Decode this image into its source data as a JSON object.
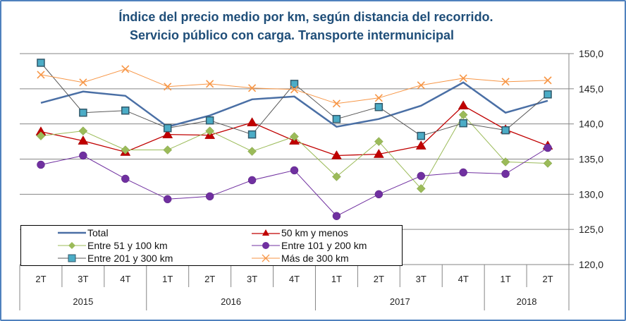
{
  "chart_data": {
    "type": "line",
    "title": "Índice del precio medio por km, según distancia del recorrido.",
    "subtitle": "Servicio público con carga. Transporte intermunicipal",
    "xlabel": "",
    "ylabel": "",
    "ylim": [
      120,
      150
    ],
    "y_ticks": [
      "150,0",
      "145,0",
      "140,0",
      "135,0",
      "130,0",
      "125,0",
      "120,0"
    ],
    "y_tick_values": [
      150,
      145,
      140,
      135,
      130,
      125,
      120
    ],
    "y_axis_side": "right",
    "grid": true,
    "legend_position": "bottom-left",
    "categories": [
      "2T",
      "3T",
      "4T",
      "1T",
      "2T",
      "3T",
      "4T",
      "1T",
      "2T",
      "3T",
      "4T",
      "1T",
      "2T"
    ],
    "year_groups": [
      {
        "label": "2015",
        "count": 3
      },
      {
        "label": "2016",
        "count": 4
      },
      {
        "label": "2017",
        "count": 4
      },
      {
        "label": "2018",
        "count": 2
      }
    ],
    "series": [
      {
        "name": "Total",
        "color": "#4a6fa5",
        "marker": "none",
        "width": 2.5,
        "values": [
          143.0,
          144.6,
          144.0,
          139.6,
          141.2,
          143.5,
          143.9,
          139.6,
          140.7,
          142.6,
          145.9,
          141.6,
          143.3
        ]
      },
      {
        "name": "50 km y menos",
        "color": "#c00000",
        "marker": "triangle",
        "width": 1.3,
        "values": [
          138.9,
          137.6,
          136.0,
          138.5,
          138.4,
          140.2,
          137.6,
          135.5,
          135.7,
          136.9,
          142.6,
          139.2,
          136.9
        ]
      },
      {
        "name": "Entre 51 y 100 km",
        "color": "#9bbb59",
        "marker": "diamond",
        "width": 1,
        "values": [
          138.3,
          139.0,
          136.3,
          136.3,
          139.0,
          136.1,
          138.2,
          132.5,
          137.5,
          130.8,
          141.3,
          134.6,
          134.4
        ]
      },
      {
        "name": "Entre 101 y 200 km",
        "color": "#7030a0",
        "marker": "circle",
        "width": 1,
        "values": [
          134.2,
          135.5,
          132.2,
          129.3,
          129.7,
          132.0,
          133.4,
          126.9,
          130.0,
          132.6,
          133.1,
          132.9,
          136.6
        ]
      },
      {
        "name": "Entre 201 y 300 km",
        "color": "#4bacc6",
        "line_color": "#595959",
        "marker": "square",
        "width": 1,
        "values": [
          148.7,
          141.6,
          141.9,
          139.4,
          140.5,
          138.5,
          145.7,
          140.7,
          142.4,
          138.3,
          140.1,
          139.1,
          144.2
        ]
      },
      {
        "name": "Más de 300 km",
        "color": "#f79646",
        "marker": "x",
        "width": 1,
        "values": [
          147.0,
          145.9,
          147.8,
          145.3,
          145.7,
          145.1,
          144.9,
          142.9,
          143.7,
          145.5,
          146.5,
          146.0,
          146.2
        ]
      }
    ]
  }
}
